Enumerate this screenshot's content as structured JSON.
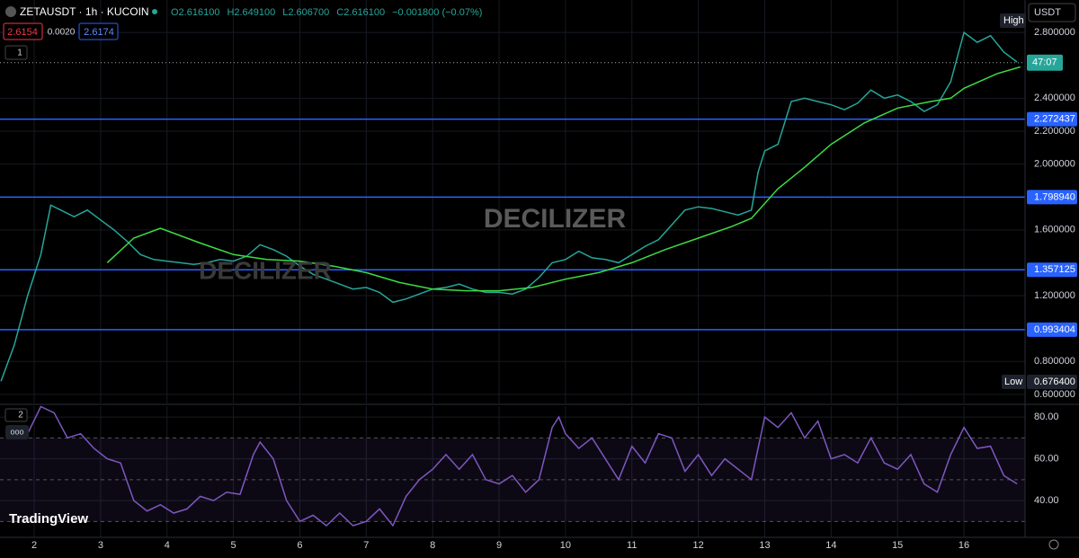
{
  "header": {
    "symbol": "ZETAUSDT · 1h · KUCOIN",
    "ohlc": [
      "O2.616100",
      "H2.649100",
      "L2.606700",
      "C2.616100",
      "−0.001800 (−0.07%)"
    ],
    "bid": "2.6154",
    "spread": "0.0020",
    "ask": "2.6174",
    "pane_one": "1",
    "pane_two": "2",
    "more": "ooo",
    "currency": "USDT",
    "watermark": "DECILIZER",
    "logo": "TradingView"
  },
  "chart_data": [
    {
      "type": "line",
      "xlim": [
        1.485,
        16.92
      ],
      "xticks": [
        2,
        3,
        4,
        5,
        6,
        7,
        8,
        9,
        10,
        11,
        12,
        13,
        14,
        15,
        16
      ],
      "ylim": [
        0.545,
        2.997
      ],
      "yticks": [
        {
          "value": 0.6,
          "label": "0.600000"
        },
        {
          "value": 0.8,
          "label": "0.800000"
        },
        {
          "value": 1.2,
          "label": "1.200000"
        },
        {
          "value": 1.6,
          "label": "1.600000"
        },
        {
          "value": 2.0,
          "label": "2.000000"
        },
        {
          "value": 2.2,
          "label": "2.200000"
        },
        {
          "value": 2.4,
          "label": "2.400000"
        },
        {
          "value": 2.8,
          "label": "2.800000"
        }
      ],
      "grid": true,
      "levels": [
        {
          "value": 2.272437,
          "label": "2.272437"
        },
        {
          "value": 1.79894,
          "label": "1.798940"
        },
        {
          "value": 1.357125,
          "label": "1.357125"
        },
        {
          "value": 0.993404,
          "label": "0.993404"
        }
      ],
      "level_color": "#2962ff",
      "high_label": "High",
      "low": {
        "label": "Low",
        "value": 0.6764,
        "value_label": "0.676400"
      },
      "last_price": 2.6161,
      "countdown": "47:07",
      "series": [
        {
          "color": "#26a69a",
          "x": [
            1.5,
            1.7,
            1.9,
            2.1,
            2.25,
            2.4,
            2.6,
            2.8,
            3.0,
            3.2,
            3.4,
            3.6,
            3.8,
            4.0,
            4.2,
            4.4,
            4.6,
            4.8,
            5.0,
            5.2,
            5.4,
            5.6,
            5.8,
            6.0,
            6.2,
            6.4,
            6.6,
            6.8,
            7.0,
            7.2,
            7.4,
            7.6,
            7.8,
            8.0,
            8.2,
            8.4,
            8.6,
            8.8,
            9.0,
            9.2,
            9.4,
            9.6,
            9.8,
            10.0,
            10.2,
            10.4,
            10.6,
            10.8,
            11.0,
            11.2,
            11.4,
            11.6,
            11.8,
            12.0,
            12.2,
            12.4,
            12.6,
            12.8,
            12.9,
            13.0,
            13.2,
            13.4,
            13.6,
            13.8,
            14.0,
            14.2,
            14.4,
            14.6,
            14.8,
            15.0,
            15.2,
            15.4,
            15.6,
            15.8,
            16.0,
            16.2,
            16.4,
            16.6,
            16.8
          ],
          "values": [
            0.68,
            0.9,
            1.2,
            1.45,
            1.75,
            1.72,
            1.68,
            1.72,
            1.66,
            1.6,
            1.53,
            1.45,
            1.42,
            1.41,
            1.4,
            1.39,
            1.4,
            1.42,
            1.41,
            1.44,
            1.51,
            1.48,
            1.44,
            1.38,
            1.33,
            1.3,
            1.27,
            1.24,
            1.25,
            1.22,
            1.16,
            1.18,
            1.21,
            1.24,
            1.25,
            1.27,
            1.24,
            1.22,
            1.22,
            1.21,
            1.24,
            1.31,
            1.4,
            1.42,
            1.47,
            1.43,
            1.42,
            1.4,
            1.45,
            1.5,
            1.54,
            1.63,
            1.72,
            1.74,
            1.73,
            1.71,
            1.69,
            1.72,
            1.95,
            2.08,
            2.12,
            2.38,
            2.4,
            2.38,
            2.36,
            2.33,
            2.37,
            2.45,
            2.4,
            2.42,
            2.38,
            2.32,
            2.36,
            2.5,
            2.8,
            2.74,
            2.78,
            2.68,
            2.62
          ]
        },
        {
          "color": "#3ddc43",
          "x": [
            3.1,
            3.5,
            3.9,
            4.5,
            5.0,
            5.5,
            6.0,
            6.5,
            7.0,
            7.5,
            8.0,
            8.5,
            9.0,
            9.5,
            10.0,
            10.5,
            11.0,
            11.5,
            12.0,
            12.5,
            12.8,
            13.2,
            13.6,
            14.0,
            14.5,
            15.0,
            15.5,
            15.8,
            16.0,
            16.5,
            16.85
          ],
          "values": [
            1.4,
            1.55,
            1.61,
            1.52,
            1.45,
            1.42,
            1.41,
            1.38,
            1.34,
            1.28,
            1.24,
            1.23,
            1.23,
            1.25,
            1.3,
            1.34,
            1.4,
            1.48,
            1.55,
            1.62,
            1.67,
            1.85,
            1.98,
            2.12,
            2.25,
            2.34,
            2.38,
            2.4,
            2.46,
            2.55,
            2.59
          ]
        }
      ]
    },
    {
      "type": "line",
      "xlim": [
        1.485,
        16.92
      ],
      "ylim": [
        22.4,
        85.2
      ],
      "yticks": [
        {
          "value": 40,
          "label": "40.00"
        },
        {
          "value": 60,
          "label": "60.00"
        },
        {
          "value": 80,
          "label": "80.00"
        }
      ],
      "levels": [
        70,
        50,
        30
      ],
      "series": [
        {
          "color": "#7e57c2",
          "x": [
            1.9,
            2.1,
            2.3,
            2.5,
            2.7,
            2.9,
            3.1,
            3.3,
            3.5,
            3.7,
            3.9,
            4.1,
            4.3,
            4.5,
            4.7,
            4.9,
            5.1,
            5.3,
            5.4,
            5.6,
            5.8,
            6.0,
            6.2,
            6.4,
            6.6,
            6.8,
            7.0,
            7.2,
            7.4,
            7.6,
            7.8,
            8.0,
            8.2,
            8.4,
            8.6,
            8.8,
            9.0,
            9.2,
            9.4,
            9.6,
            9.8,
            9.9,
            10.0,
            10.2,
            10.4,
            10.6,
            10.8,
            11.0,
            11.2,
            11.4,
            11.6,
            11.8,
            12.0,
            12.2,
            12.4,
            12.6,
            12.8,
            13.0,
            13.2,
            13.4,
            13.6,
            13.8,
            14.0,
            14.2,
            14.4,
            14.6,
            14.8,
            15.0,
            15.2,
            15.4,
            15.6,
            15.8,
            16.0,
            16.2,
            16.4,
            16.6,
            16.8
          ],
          "values": [
            72,
            85,
            82,
            70,
            72,
            65,
            60,
            58,
            40,
            35,
            38,
            34,
            36,
            42,
            40,
            44,
            43,
            62,
            68,
            60,
            40,
            30,
            33,
            28,
            34,
            28,
            30,
            36,
            28,
            42,
            50,
            55,
            62,
            55,
            62,
            50,
            48,
            52,
            44,
            50,
            75,
            80,
            72,
            65,
            70,
            60,
            50,
            66,
            58,
            72,
            70,
            54,
            62,
            52,
            60,
            55,
            50,
            80,
            75,
            82,
            70,
            78,
            60,
            62,
            58,
            70,
            58,
            55,
            62,
            48,
            44,
            62,
            75,
            65,
            66,
            52,
            48
          ]
        }
      ]
    }
  ]
}
